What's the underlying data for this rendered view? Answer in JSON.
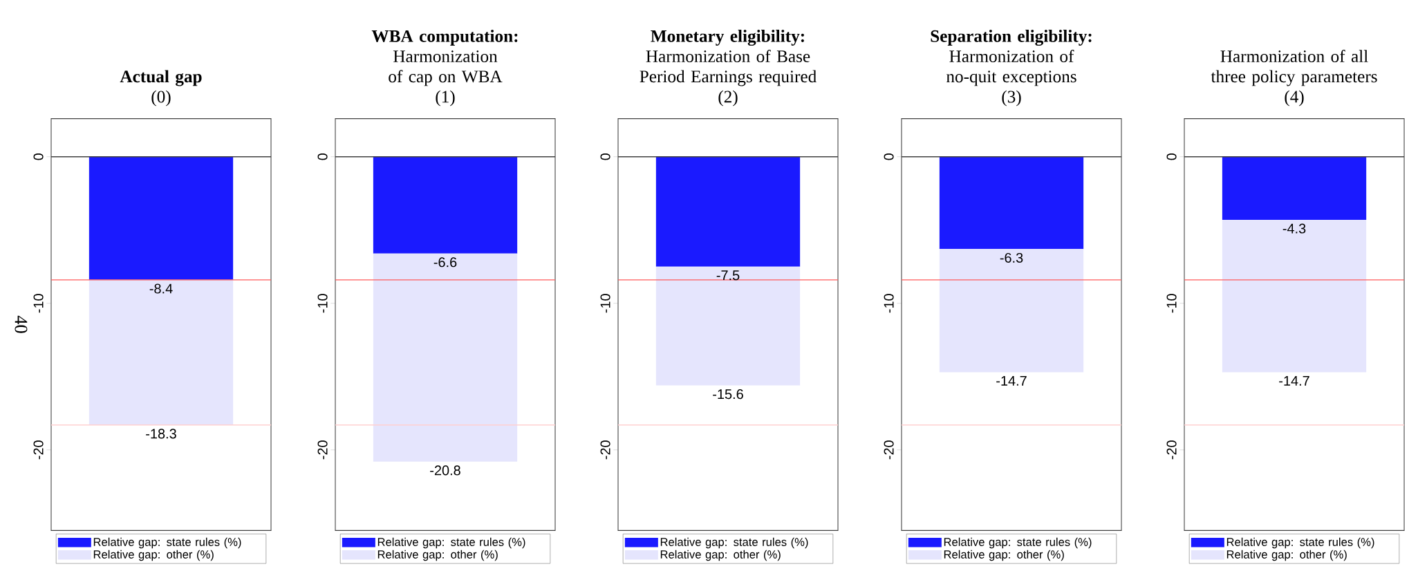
{
  "chart_data": [
    {
      "type": "bar",
      "stacked": true,
      "title": "Actual gap",
      "annotations": [
        "(0)"
      ],
      "ylabel": "40",
      "categories": [
        null
      ],
      "series": [
        {
          "name": "Relative gap: state rules (%)",
          "color": "#1a1aff",
          "values": [
            -8.4
          ],
          "value_labels": [
            "-8.4"
          ]
        },
        {
          "name": "Relative gap: other (%)",
          "color": "#e5e5fd",
          "values": [
            -9.9
          ]
        }
      ],
      "totals": [
        "-18.3"
      ],
      "ylim": [
        -25.5,
        2.6
      ],
      "yticks": [
        0,
        -10,
        -20
      ],
      "legend": "bottom",
      "ref_lines": [
        {
          "axis": "y",
          "value": 0,
          "color": "#404040"
        },
        {
          "axis": "y",
          "value": -8.4,
          "color": "#ff5a5a"
        },
        {
          "axis": "y",
          "value": -18.3,
          "color": "#ffd0d0"
        }
      ]
    },
    {
      "type": "bar",
      "stacked": true,
      "title": "WBA computation:",
      "subtitle": "Harmonization of cap on WBA",
      "annotations": [
        "(1)"
      ],
      "categories": [
        null
      ],
      "series": [
        {
          "name": "Relative gap: state rules (%)",
          "color": "#1a1aff",
          "values": [
            -6.6
          ],
          "value_labels": [
            "-6.6"
          ]
        },
        {
          "name": "Relative gap: other (%)",
          "color": "#e5e5fd",
          "values": [
            -14.2
          ]
        }
      ],
      "totals": [
        "-20.8"
      ],
      "ylim": [
        -25.5,
        2.6
      ],
      "yticks": [
        0,
        -10,
        -20
      ],
      "legend": "bottom",
      "ref_lines": [
        {
          "axis": "y",
          "value": 0,
          "color": "#404040"
        },
        {
          "axis": "y",
          "value": -8.4,
          "color": "#ff5a5a"
        },
        {
          "axis": "y",
          "value": -18.3,
          "color": "#ffd0d0"
        }
      ]
    },
    {
      "type": "bar",
      "stacked": true,
      "title": "Monetary eligibility:",
      "subtitle": "Harmonization of Base Period Earnings required",
      "annotations": [
        "(2)"
      ],
      "categories": [
        null
      ],
      "series": [
        {
          "name": "Relative gap: state rules (%)",
          "color": "#1a1aff",
          "values": [
            -7.5
          ],
          "value_labels": [
            "-7.5"
          ]
        },
        {
          "name": "Relative gap: other (%)",
          "color": "#e5e5fd",
          "values": [
            -8.1
          ]
        }
      ],
      "totals": [
        "-15.6"
      ],
      "ylim": [
        -25.5,
        2.6
      ],
      "yticks": [
        0,
        -10,
        -20
      ],
      "legend": "bottom",
      "ref_lines": [
        {
          "axis": "y",
          "value": 0,
          "color": "#404040"
        },
        {
          "axis": "y",
          "value": -8.4,
          "color": "#ff5a5a"
        },
        {
          "axis": "y",
          "value": -18.3,
          "color": "#ffd0d0"
        }
      ]
    },
    {
      "type": "bar",
      "stacked": true,
      "title": "Separation eligibility:",
      "subtitle": "Harmonization of no-quit exceptions",
      "annotations": [
        "(3)"
      ],
      "categories": [
        null
      ],
      "series": [
        {
          "name": "Relative gap: state rules (%)",
          "color": "#1a1aff",
          "values": [
            -6.3
          ],
          "value_labels": [
            "-6.3"
          ]
        },
        {
          "name": "Relative gap: other (%)",
          "color": "#e5e5fd",
          "values": [
            -8.4
          ]
        }
      ],
      "totals": [
        "-14.7"
      ],
      "ylim": [
        -25.5,
        2.6
      ],
      "yticks": [
        0,
        -10,
        -20
      ],
      "legend": "bottom",
      "ref_lines": [
        {
          "axis": "y",
          "value": 0,
          "color": "#404040"
        },
        {
          "axis": "y",
          "value": -8.4,
          "color": "#ff5a5a"
        },
        {
          "axis": "y",
          "value": -18.3,
          "color": "#ffd0d0"
        }
      ]
    },
    {
      "type": "bar",
      "stacked": true,
      "subtitle": "Harmonization of all three policy parameters",
      "annotations": [
        "(4)"
      ],
      "categories": [
        null
      ],
      "series": [
        {
          "name": "Relative gap: state rules (%)",
          "color": "#1a1aff",
          "values": [
            -4.3
          ],
          "value_labels": [
            "-4.3"
          ]
        },
        {
          "name": "Relative gap: other (%)",
          "color": "#e5e5fd",
          "values": [
            -10.4
          ]
        }
      ],
      "totals": [
        "-14.7"
      ],
      "ylim": [
        -25.5,
        2.6
      ],
      "yticks": [
        0,
        -10,
        -20
      ],
      "legend": "bottom",
      "ref_lines": [
        {
          "axis": "y",
          "value": 0,
          "color": "#404040"
        },
        {
          "axis": "y",
          "value": -8.4,
          "color": "#ff5a5a"
        },
        {
          "axis": "y",
          "value": -18.3,
          "color": "#ffd0d0"
        }
      ]
    }
  ]
}
